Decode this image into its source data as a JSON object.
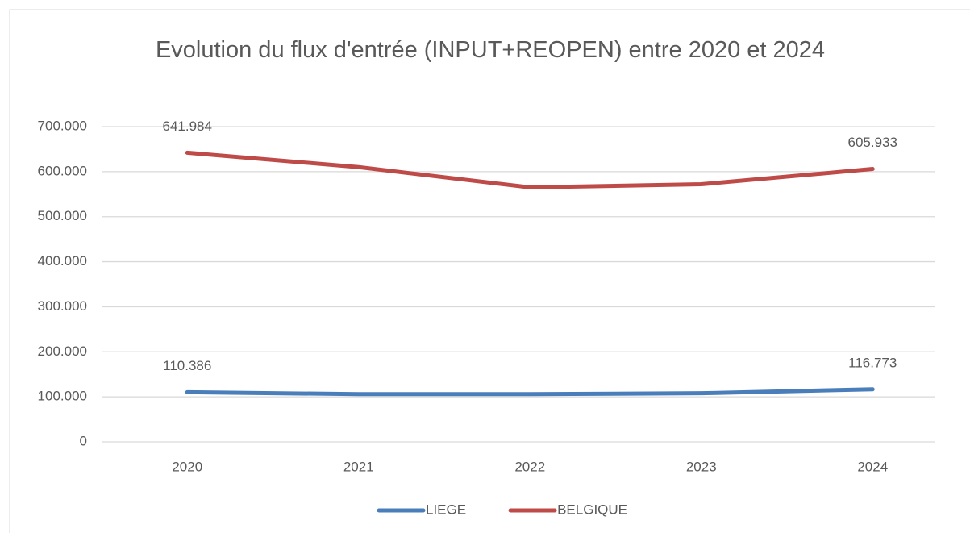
{
  "chart_data": {
    "type": "line",
    "title": "Evolution du flux d'entrée (INPUT+REOPEN) entre 2020 et 2024",
    "categories": [
      "2020",
      "2021",
      "2022",
      "2023",
      "2024"
    ],
    "series": [
      {
        "name": "LIEGE",
        "color": "#4a7ebb",
        "values": [
          110386,
          106000,
          106000,
          108000,
          116773
        ],
        "value_labels": [
          "110.386",
          null,
          null,
          null,
          "116.773"
        ]
      },
      {
        "name": "BELGIQUE",
        "color": "#be4b48",
        "values": [
          641984,
          610000,
          565000,
          572000,
          605933
        ],
        "value_labels": [
          "641.984",
          null,
          null,
          null,
          "605.933"
        ]
      }
    ],
    "ylim": [
      0,
      700000
    ],
    "yticks": [
      0,
      {
        "value": 100000,
        "label": "100.000"
      },
      {
        "value": 200000,
        "label": "200.000"
      },
      {
        "value": 300000,
        "label": "300.000"
      },
      {
        "value": 400000,
        "label": "400.000"
      },
      {
        "value": 500000,
        "label": "500.000"
      },
      {
        "value": 600000,
        "label": "600.000"
      },
      {
        "value": 700000,
        "label": "700.000"
      }
    ],
    "grid": true,
    "legend": "bottom"
  }
}
